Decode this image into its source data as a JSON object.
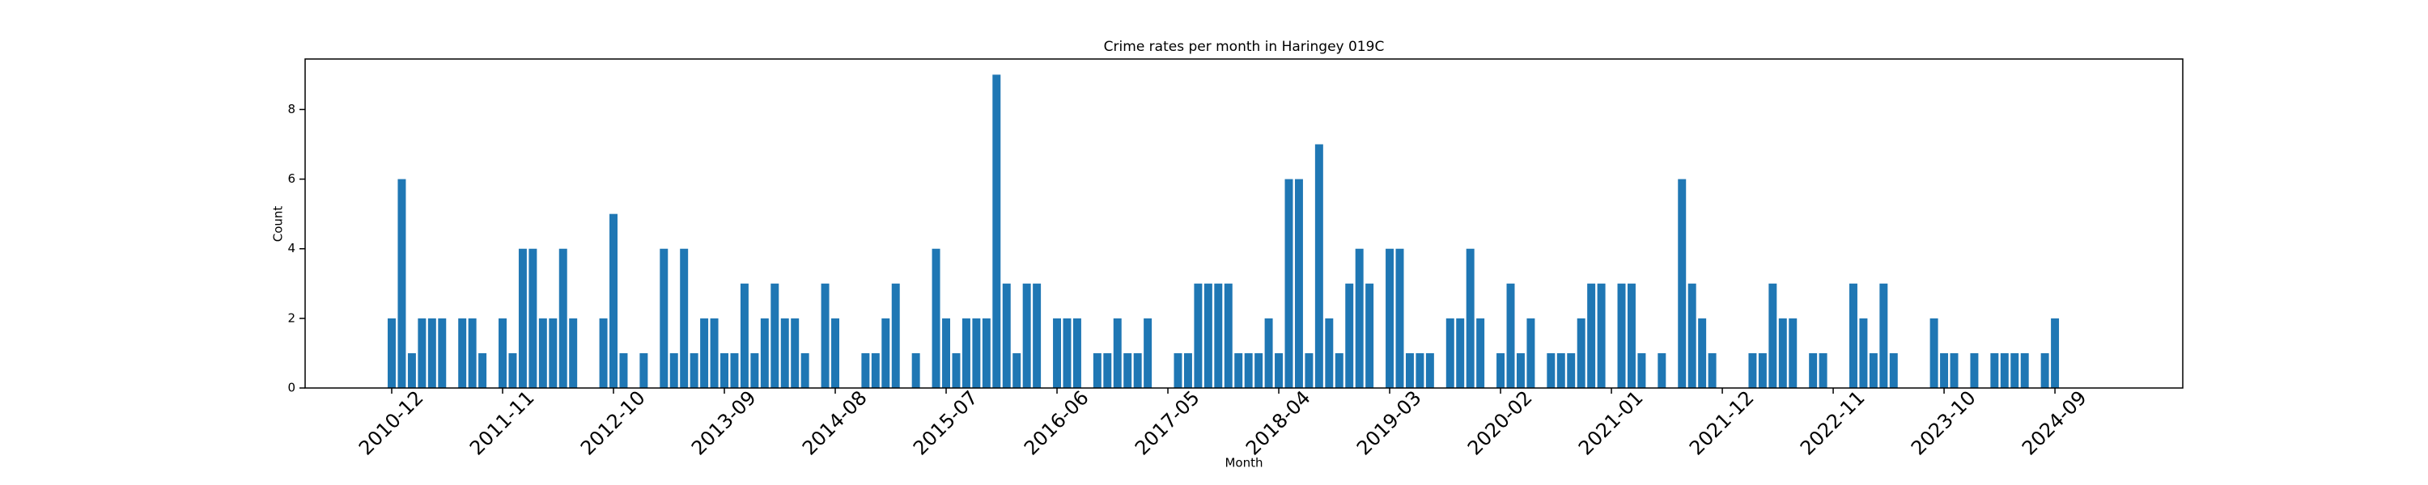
{
  "chart_data": {
    "type": "bar",
    "title": "Crime rates per month in Haringey 019C",
    "x_label": "Month",
    "y_label": "Count",
    "color": "#1f77b4",
    "categories": [
      "2010-12",
      null,
      null,
      null,
      null,
      null,
      null,
      null,
      null,
      null,
      null,
      "2011-11",
      null,
      null,
      null,
      null,
      null,
      null,
      null,
      null,
      null,
      null,
      "2012-10",
      null,
      null,
      null,
      null,
      null,
      null,
      null,
      null,
      null,
      null,
      "2013-09",
      null,
      null,
      null,
      null,
      null,
      null,
      null,
      null,
      null,
      null,
      "2014-08",
      null,
      null,
      null,
      null,
      null,
      null,
      null,
      null,
      null,
      null,
      "2015-07",
      null,
      null,
      null,
      null,
      null,
      null,
      null,
      null,
      null,
      null,
      "2016-06",
      null,
      null,
      null,
      null,
      null,
      null,
      null,
      null,
      null,
      null,
      "2017-05",
      null,
      null,
      null,
      null,
      null,
      null,
      null,
      null,
      null,
      null,
      "2018-04",
      null,
      null,
      null,
      null,
      null,
      null,
      null,
      null,
      null,
      null,
      "2019-03",
      null,
      null,
      null,
      null,
      null,
      null,
      null,
      null,
      null,
      null,
      "2020-02",
      null,
      null,
      null,
      null,
      null,
      null,
      null,
      null,
      null,
      null,
      "2021-01",
      null,
      null,
      null,
      null,
      null,
      null,
      null,
      null,
      null,
      null,
      "2021-12",
      null,
      null,
      null,
      null,
      null,
      null,
      null,
      null,
      null,
      null,
      "2022-11",
      null,
      null,
      null,
      null,
      null,
      null,
      null,
      null,
      null,
      null,
      "2023-10",
      null,
      null,
      null,
      null,
      null,
      null,
      null,
      null,
      null,
      null,
      "2024-09"
    ],
    "values": [
      2,
      6,
      1,
      2,
      2,
      2,
      0,
      2,
      2,
      1,
      0,
      2,
      1,
      4,
      4,
      2,
      2,
      4,
      2,
      0,
      0,
      2,
      5,
      1,
      0,
      1,
      0,
      4,
      1,
      4,
      1,
      2,
      2,
      1,
      1,
      3,
      1,
      2,
      3,
      2,
      2,
      1,
      0,
      3,
      2,
      0,
      0,
      1,
      1,
      2,
      3,
      0,
      1,
      0,
      4,
      2,
      1,
      2,
      2,
      2,
      9,
      3,
      1,
      3,
      3,
      0,
      2,
      2,
      2,
      0,
      1,
      1,
      2,
      1,
      1,
      2,
      0,
      0,
      1,
      1,
      3,
      3,
      3,
      3,
      1,
      1,
      1,
      2,
      1,
      6,
      6,
      1,
      7,
      2,
      1,
      3,
      4,
      3,
      0,
      4,
      4,
      1,
      1,
      1,
      0,
      2,
      2,
      4,
      2,
      0,
      1,
      3,
      1,
      2,
      0,
      1,
      1,
      1,
      2,
      3,
      3,
      0,
      3,
      3,
      1,
      0,
      1,
      0,
      6,
      3,
      2,
      1,
      0,
      0,
      0,
      1,
      1,
      3,
      2,
      2,
      0,
      1,
      1,
      0,
      0,
      3,
      2,
      1,
      3,
      1,
      0,
      0,
      0,
      2,
      1,
      1,
      0,
      1,
      0,
      1,
      1,
      1,
      1,
      0,
      1,
      2
    ],
    "ylim": [
      0,
      9.45
    ],
    "yticks": [
      0,
      2,
      4,
      6,
      8
    ]
  }
}
